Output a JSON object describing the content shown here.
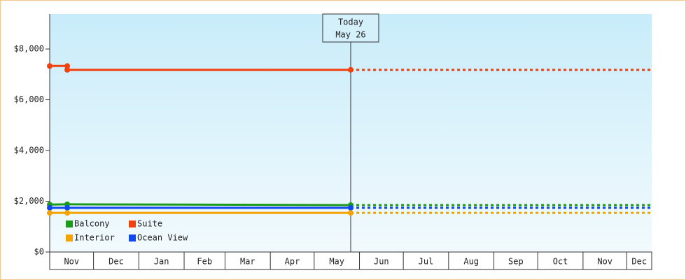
{
  "chart_data": {
    "type": "line",
    "series": [
      {
        "name": "Suite",
        "color": "#f2400f",
        "x": [
          0,
          12,
          12,
          206
        ],
        "values": [
          7330,
          7330,
          7180,
          7180
        ]
      },
      {
        "name": "Balcony",
        "color": "#1c9a1c",
        "x": [
          0,
          12,
          206
        ],
        "values": [
          1870,
          1880,
          1850
        ]
      },
      {
        "name": "Ocean View",
        "color": "#1048f0",
        "x": [
          0,
          12,
          206
        ],
        "values": [
          1740,
          1740,
          1740
        ]
      },
      {
        "name": "Interior",
        "color": "#f5a300",
        "x": [
          0,
          12,
          206
        ],
        "values": [
          1540,
          1540,
          1540
        ]
      }
    ],
    "legend_order": [
      1,
      0,
      3,
      2
    ],
    "xlim": [
      0,
      412
    ],
    "xticks": [
      {
        "value": 0,
        "label": "Nov"
      },
      {
        "value": 30,
        "label": "Dec"
      },
      {
        "value": 61,
        "label": "Jan"
      },
      {
        "value": 92,
        "label": "Feb"
      },
      {
        "value": 120,
        "label": "Mar"
      },
      {
        "value": 151,
        "label": "Apr"
      },
      {
        "value": 181,
        "label": "May"
      },
      {
        "value": 212,
        "label": "Jun"
      },
      {
        "value": 242,
        "label": "Jul"
      },
      {
        "value": 273,
        "label": "Aug"
      },
      {
        "value": 304,
        "label": "Sep"
      },
      {
        "value": 334,
        "label": "Oct"
      },
      {
        "value": 365,
        "label": "Nov"
      },
      {
        "value": 395,
        "label": "Dec"
      }
    ],
    "ylim": [
      0,
      9380
    ],
    "yticks": [
      {
        "value": 0,
        "label": "$0"
      },
      {
        "value": 2000,
        "label": "$2,000"
      },
      {
        "value": 4000,
        "label": "$4,000"
      },
      {
        "value": 6000,
        "label": "$6,000"
      },
      {
        "value": 8000,
        "label": "$8,000"
      }
    ],
    "annotation": {
      "x": 206,
      "lines": [
        "Today",
        "May 26"
      ]
    }
  }
}
